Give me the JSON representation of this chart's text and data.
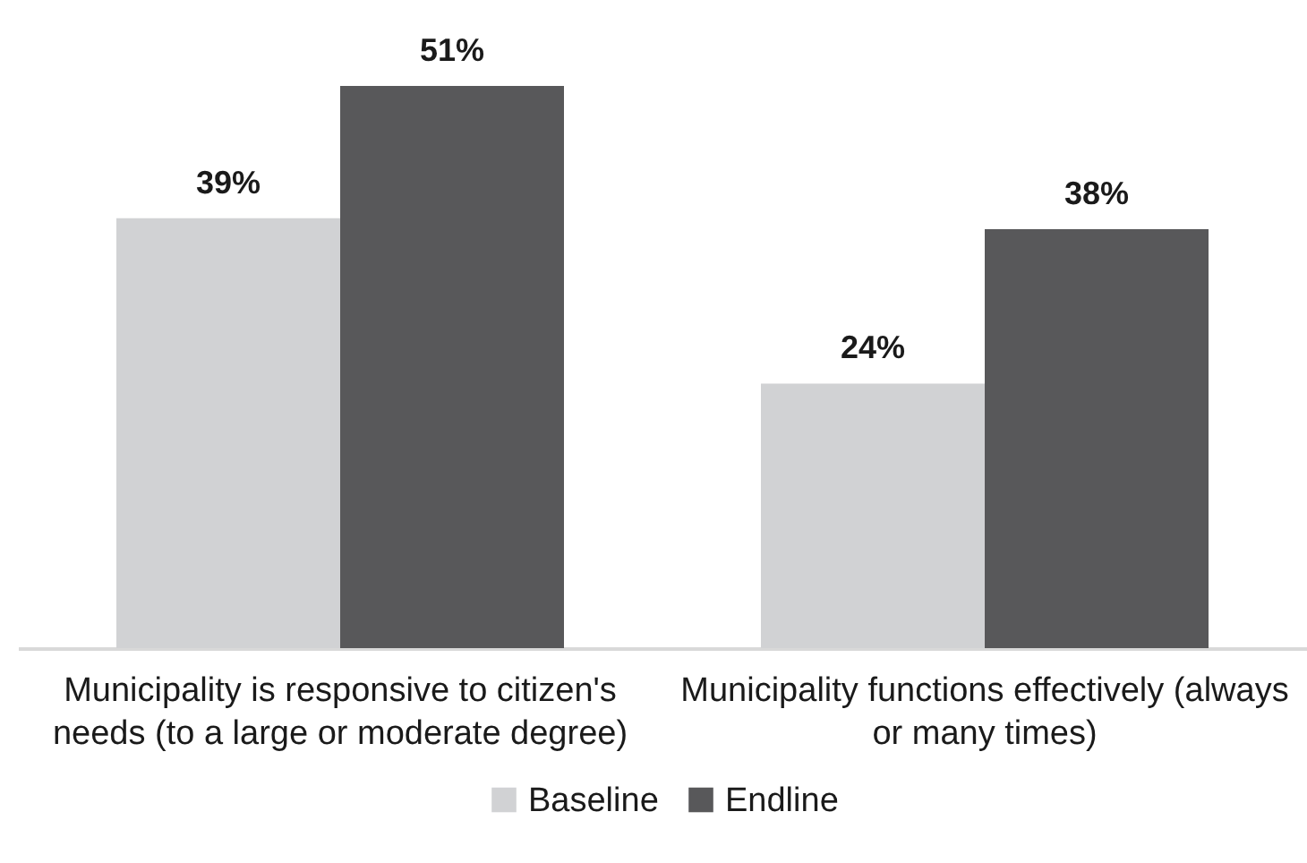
{
  "chart_data": {
    "type": "bar",
    "categories": [
      "Municipality is responsive to citizen's needs (to a large or moderate degree)",
      "Municipality functions effectively (always or many times)"
    ],
    "series": [
      {
        "name": "Baseline",
        "color": "#d1d2d4",
        "values": [
          39,
          24
        ],
        "value_labels": [
          "39%",
          "24%"
        ]
      },
      {
        "name": "Endline",
        "color": "#58585a",
        "values": [
          51,
          38
        ],
        "value_labels": [
          "51%",
          "38%"
        ]
      }
    ],
    "legend": "bottom"
  }
}
